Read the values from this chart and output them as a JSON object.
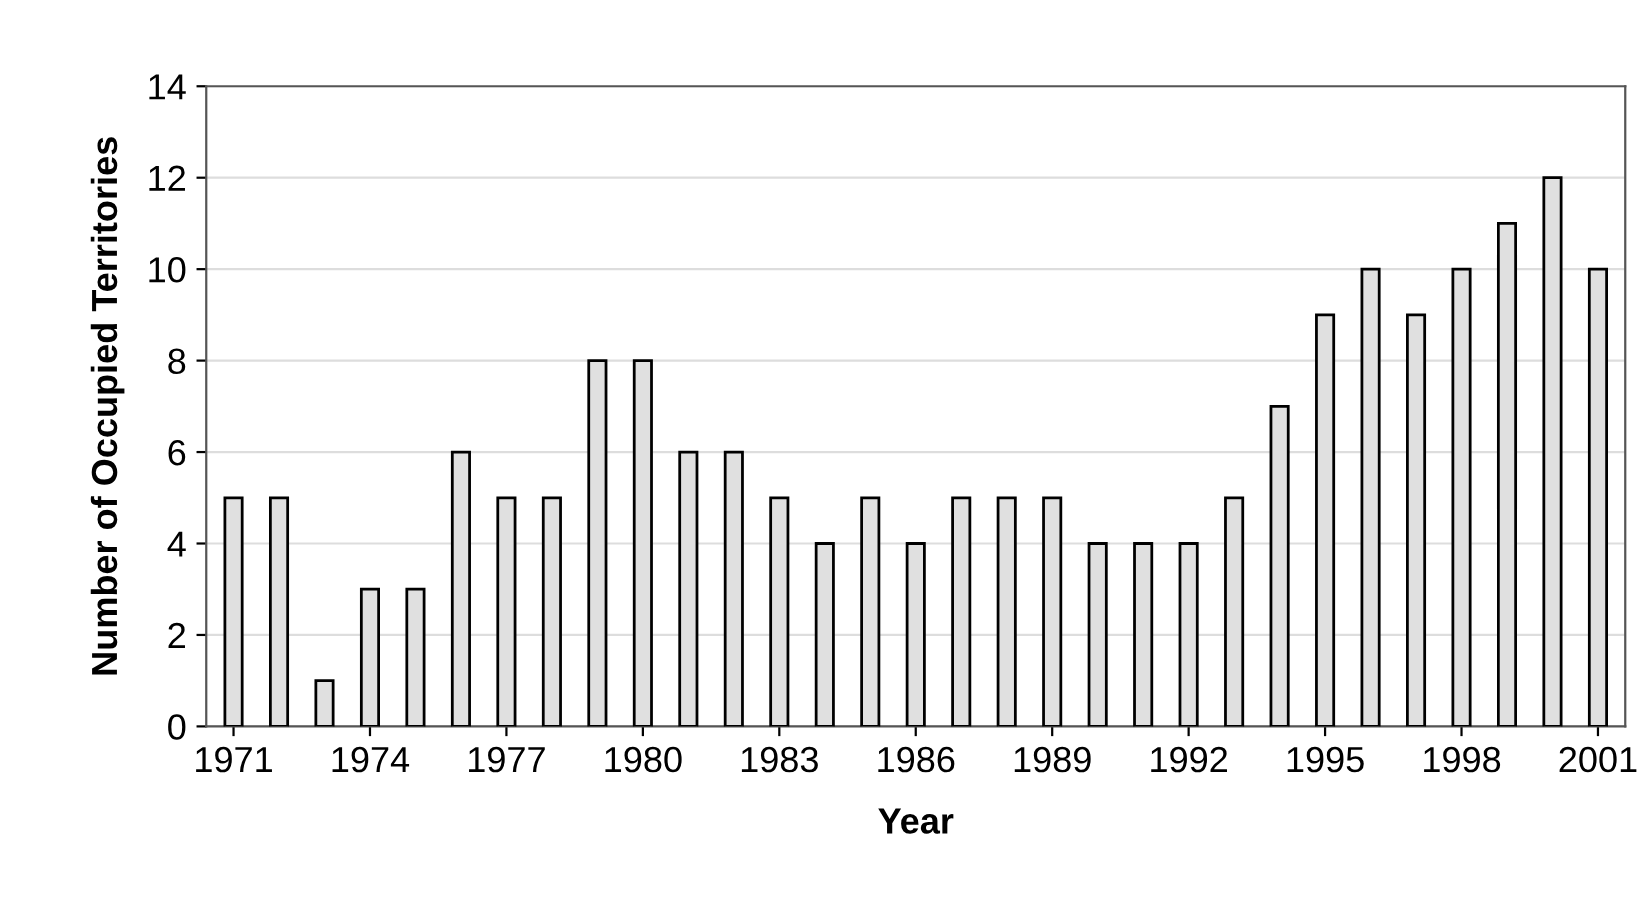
{
  "chart_data": {
    "type": "bar",
    "xlabel": "Year",
    "ylabel": "Number of Occupied Territories",
    "categories": [
      "1971",
      null,
      null,
      "1974",
      null,
      null,
      "1977",
      null,
      null,
      "1980",
      null,
      null,
      "1983",
      null,
      null,
      "1986",
      null,
      null,
      "1989",
      null,
      null,
      "1992",
      null,
      null,
      "1995",
      null,
      null,
      "1998",
      null,
      null,
      "2001"
    ],
    "values": [
      5,
      5,
      1,
      3,
      3,
      6,
      5,
      5,
      8,
      8,
      6,
      6,
      5,
      4,
      5,
      4,
      5,
      5,
      5,
      4,
      4,
      4,
      5,
      7,
      9,
      10,
      9,
      10,
      11,
      12,
      10
    ],
    "color": "#e0e0e0",
    "ylim": [
      0,
      14
    ],
    "yticks": [
      0,
      2,
      4,
      6,
      8,
      10,
      12,
      14
    ],
    "grid": "y",
    "legend": false
  }
}
